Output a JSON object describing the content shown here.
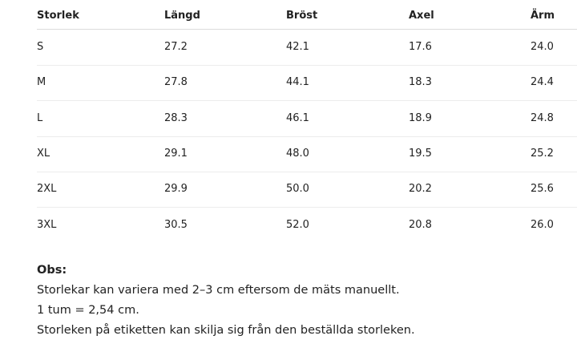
{
  "table": {
    "header": [
      "Storlek",
      "Längd",
      "Bröst",
      "Axel",
      "Ärm"
    ],
    "rows": [
      [
        "S",
        "27.2",
        "42.1",
        "17.6",
        "24.0"
      ],
      [
        "M",
        "27.8",
        "44.1",
        "18.3",
        "24.4"
      ],
      [
        "L",
        "28.3",
        "46.1",
        "18.9",
        "24.8"
      ],
      [
        "XL",
        "29.1",
        "48.0",
        "19.5",
        "25.2"
      ],
      [
        "2XL",
        "29.9",
        "50.0",
        "20.2",
        "25.6"
      ],
      [
        "3XL",
        "30.5",
        "52.0",
        "20.8",
        "26.0"
      ]
    ]
  },
  "notes": {
    "title": "Obs:",
    "lines": [
      "Storlekar kan variera med 2–3 cm eftersom de mäts manuellt.",
      "1 tum = 2,54 cm.",
      "Storleken på etiketten kan skilja sig från den beställda storleken."
    ]
  }
}
